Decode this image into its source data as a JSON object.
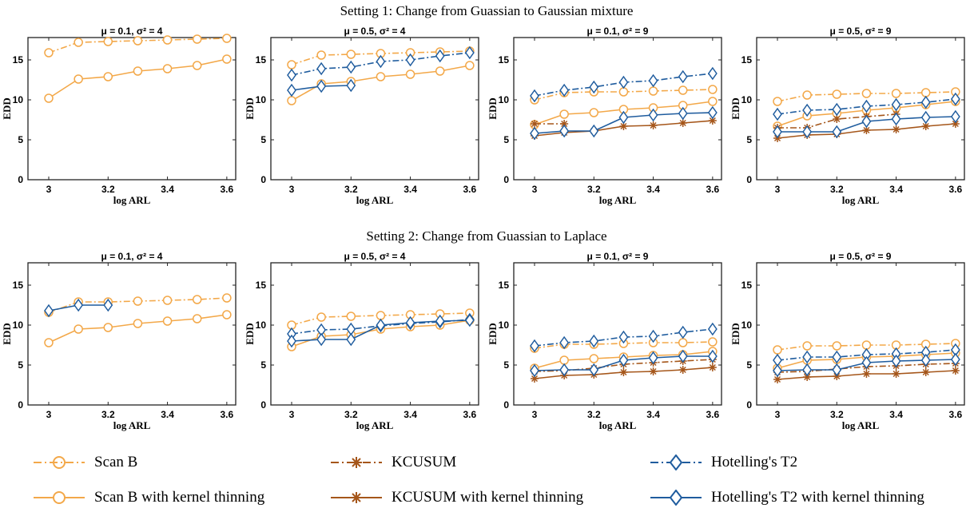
{
  "figure": {
    "settings": [
      {
        "title": "Setting 1: Change from Guassian to Gaussian mixture"
      },
      {
        "title": "Setting 2: Change from Guassian to Laplace"
      }
    ]
  },
  "colors": {
    "scan": "#F3A849",
    "kcusum": "#A5561A",
    "hotelling": "#1F5C9E"
  },
  "legend": [
    {
      "label": "Scan B",
      "method": "scan",
      "style": "dashdot"
    },
    {
      "label": "KCUSUM",
      "method": "kcusum",
      "style": "dashdot"
    },
    {
      "label": "Hotelling's T2",
      "method": "hotelling",
      "style": "dashdot"
    },
    {
      "label": "Scan B with kernel thinning",
      "method": "scan",
      "style": "solid"
    },
    {
      "label": "KCUSUM with kernel thinning",
      "method": "kcusum",
      "style": "solid"
    },
    {
      "label": "Hotelling's T2 with kernel thinning",
      "method": "hotelling",
      "style": "solid"
    }
  ],
  "chart_data": [
    {
      "type": "line",
      "setting": 1,
      "title": "μ = 0.1, σ² = 4",
      "xlabel": "log ARL",
      "ylabel": "EDD",
      "xlim": [
        2.93,
        3.63
      ],
      "ylim": [
        0,
        17.8
      ],
      "xticks": [
        3,
        3.2,
        3.4,
        3.6
      ],
      "yticks": [
        0,
        5,
        10,
        15
      ],
      "x": [
        3,
        3.1,
        3.2,
        3.3,
        3.4,
        3.5,
        3.6
      ],
      "series": [
        {
          "name": "Scan B",
          "method": "scan",
          "style": "dashdot",
          "values": [
            15.9,
            17.2,
            17.3,
            17.4,
            17.5,
            17.6,
            17.7
          ]
        },
        {
          "name": "Scan B with kernel thinning",
          "method": "scan",
          "style": "solid",
          "values": [
            10.2,
            12.6,
            12.9,
            13.6,
            13.9,
            14.3,
            15.1
          ]
        }
      ]
    },
    {
      "type": "line",
      "setting": 1,
      "title": "μ = 0.5, σ² = 4",
      "xlabel": "log ARL",
      "ylabel": "EDD",
      "xlim": [
        2.93,
        3.63
      ],
      "ylim": [
        0,
        17.8
      ],
      "xticks": [
        3,
        3.2,
        3.4,
        3.6
      ],
      "yticks": [
        0,
        5,
        10,
        15
      ],
      "x": [
        3,
        3.1,
        3.2,
        3.3,
        3.4,
        3.5,
        3.6
      ],
      "series": [
        {
          "name": "Scan B",
          "method": "scan",
          "style": "dashdot",
          "values": [
            14.4,
            15.6,
            15.7,
            15.8,
            15.9,
            16.0,
            16.1
          ]
        },
        {
          "name": "Scan B with kernel thinning",
          "method": "scan",
          "style": "solid",
          "values": [
            9.9,
            12.0,
            12.3,
            12.9,
            13.2,
            13.6,
            14.3
          ]
        },
        {
          "name": "Hotelling's T2",
          "method": "hotelling",
          "style": "dashdot",
          "values": [
            13.1,
            13.9,
            14.1,
            14.8,
            15.0,
            15.5,
            15.9
          ]
        },
        {
          "name": "Hotelling's T2 with kernel thinning",
          "method": "hotelling",
          "style": "solid",
          "values": [
            11.2,
            11.7,
            11.8,
            null,
            null,
            null,
            null
          ]
        }
      ]
    },
    {
      "type": "line",
      "setting": 1,
      "title": "μ = 0.1, σ² = 9",
      "xlabel": "log ARL",
      "ylabel": "EDD",
      "xlim": [
        2.93,
        3.63
      ],
      "ylim": [
        0,
        17.8
      ],
      "xticks": [
        3,
        3.2,
        3.4,
        3.6
      ],
      "yticks": [
        0,
        5,
        10,
        15
      ],
      "x": [
        3,
        3.1,
        3.2,
        3.3,
        3.4,
        3.5,
        3.6
      ],
      "series": [
        {
          "name": "Scan B",
          "method": "scan",
          "style": "dashdot",
          "values": [
            10.0,
            10.9,
            11.0,
            11.0,
            11.1,
            11.2,
            11.3
          ]
        },
        {
          "name": "Scan B with kernel thinning",
          "method": "scan",
          "style": "solid",
          "values": [
            6.9,
            8.2,
            8.4,
            8.8,
            9.0,
            9.3,
            9.8
          ]
        },
        {
          "name": "KCUSUM",
          "method": "kcusum",
          "style": "dashdot",
          "values": [
            7.0,
            7.0,
            null,
            null,
            null,
            null,
            null
          ]
        },
        {
          "name": "KCUSUM with kernel thinning",
          "method": "kcusum",
          "style": "solid",
          "values": [
            5.5,
            5.9,
            6.1,
            6.7,
            6.8,
            7.1,
            7.4
          ]
        },
        {
          "name": "Hotelling's T2",
          "method": "hotelling",
          "style": "dashdot",
          "values": [
            10.5,
            11.2,
            11.6,
            12.2,
            12.4,
            12.9,
            13.3
          ]
        },
        {
          "name": "Hotelling's T2 with kernel thinning",
          "method": "hotelling",
          "style": "solid",
          "values": [
            5.8,
            6.1,
            6.1,
            7.8,
            8.1,
            8.3,
            8.4
          ]
        }
      ]
    },
    {
      "type": "line",
      "setting": 1,
      "title": "μ = 0.5, σ² = 9",
      "xlabel": "log ARL",
      "ylabel": "EDD",
      "xlim": [
        2.93,
        3.63
      ],
      "ylim": [
        0,
        17.8
      ],
      "xticks": [
        3,
        3.2,
        3.4,
        3.6
      ],
      "yticks": [
        0,
        5,
        10,
        15
      ],
      "x": [
        3,
        3.1,
        3.2,
        3.3,
        3.4,
        3.5,
        3.6
      ],
      "series": [
        {
          "name": "Scan B",
          "method": "scan",
          "style": "dashdot",
          "values": [
            9.8,
            10.6,
            10.7,
            10.8,
            10.8,
            10.9,
            11.0
          ]
        },
        {
          "name": "Scan B with kernel thinning",
          "method": "scan",
          "style": "solid",
          "values": [
            6.7,
            8.0,
            8.3,
            8.7,
            9.0,
            9.4,
            9.8
          ]
        },
        {
          "name": "KCUSUM",
          "method": "kcusum",
          "style": "dashdot",
          "values": [
            6.5,
            6.5,
            7.6,
            7.9,
            8.2,
            null,
            null
          ]
        },
        {
          "name": "KCUSUM with kernel thinning",
          "method": "kcusum",
          "style": "solid",
          "values": [
            5.2,
            5.6,
            5.7,
            6.2,
            6.3,
            6.7,
            7.0
          ]
        },
        {
          "name": "Hotelling's T2",
          "method": "hotelling",
          "style": "dashdot",
          "values": [
            8.2,
            8.7,
            8.8,
            9.2,
            9.4,
            9.7,
            10.1
          ]
        },
        {
          "name": "Hotelling's T2 with kernel thinning",
          "method": "hotelling",
          "style": "solid",
          "values": [
            6.0,
            6.0,
            6.0,
            7.3,
            7.6,
            7.8,
            7.9
          ]
        }
      ]
    },
    {
      "type": "line",
      "setting": 2,
      "title": "μ = 0.1, σ² = 4",
      "xlabel": "log ARL",
      "ylabel": "EDD",
      "xlim": [
        2.93,
        3.63
      ],
      "ylim": [
        0,
        17.8
      ],
      "xticks": [
        3,
        3.2,
        3.4,
        3.6
      ],
      "yticks": [
        0,
        5,
        10,
        15
      ],
      "x": [
        3,
        3.1,
        3.2,
        3.3,
        3.4,
        3.5,
        3.6
      ],
      "series": [
        {
          "name": "Scan B",
          "method": "scan",
          "style": "dashdot",
          "values": [
            11.6,
            12.9,
            12.9,
            13.0,
            13.1,
            13.2,
            13.4
          ]
        },
        {
          "name": "Scan B with kernel thinning",
          "method": "scan",
          "style": "solid",
          "values": [
            7.8,
            9.5,
            9.7,
            10.2,
            10.5,
            10.8,
            11.3
          ]
        },
        {
          "name": "Hotelling's T2 with kernel thinning",
          "method": "hotelling",
          "style": "solid",
          "values": [
            11.8,
            12.5,
            12.5,
            null,
            null,
            null,
            null
          ]
        }
      ]
    },
    {
      "type": "line",
      "setting": 2,
      "title": "μ = 0.5, σ² = 4",
      "xlabel": "log ARL",
      "ylabel": "EDD",
      "xlim": [
        2.93,
        3.63
      ],
      "ylim": [
        0,
        17.8
      ],
      "xticks": [
        3,
        3.2,
        3.4,
        3.6
      ],
      "yticks": [
        0,
        5,
        10,
        15
      ],
      "x": [
        3,
        3.1,
        3.2,
        3.3,
        3.4,
        3.5,
        3.6
      ],
      "series": [
        {
          "name": "Scan B",
          "method": "scan",
          "style": "dashdot",
          "values": [
            10.0,
            11.0,
            11.1,
            11.2,
            11.3,
            11.4,
            11.5
          ]
        },
        {
          "name": "Scan B with kernel thinning",
          "method": "scan",
          "style": "solid",
          "values": [
            7.3,
            8.6,
            8.8,
            9.5,
            9.8,
            10.0,
            10.6
          ]
        },
        {
          "name": "Hotelling's T2",
          "method": "hotelling",
          "style": "dashdot",
          "values": [
            8.9,
            9.4,
            9.5,
            9.9,
            10.2,
            10.4,
            10.7
          ]
        },
        {
          "name": "Hotelling's T2 with kernel thinning",
          "method": "hotelling",
          "style": "solid",
          "values": [
            8.0,
            8.2,
            8.2,
            10.0,
            10.3,
            10.5,
            10.6
          ]
        }
      ]
    },
    {
      "type": "line",
      "setting": 2,
      "title": "μ = 0.1, σ² = 9",
      "xlabel": "log ARL",
      "ylabel": "EDD",
      "xlim": [
        2.93,
        3.63
      ],
      "ylim": [
        0,
        17.8
      ],
      "xticks": [
        3,
        3.2,
        3.4,
        3.6
      ],
      "yticks": [
        0,
        5,
        10,
        15
      ],
      "x": [
        3,
        3.1,
        3.2,
        3.3,
        3.4,
        3.5,
        3.6
      ],
      "series": [
        {
          "name": "Scan B",
          "method": "scan",
          "style": "dashdot",
          "values": [
            7.1,
            7.6,
            7.6,
            7.7,
            7.8,
            7.8,
            7.9
          ]
        },
        {
          "name": "Scan B with kernel thinning",
          "method": "scan",
          "style": "solid",
          "values": [
            4.6,
            5.6,
            5.8,
            6.0,
            6.2,
            6.3,
            6.7
          ]
        },
        {
          "name": "KCUSUM",
          "method": "kcusum",
          "style": "dashdot",
          "values": [
            4.2,
            4.3,
            4.6,
            5.1,
            5.3,
            5.5,
            5.7
          ]
        },
        {
          "name": "KCUSUM with kernel thinning",
          "method": "kcusum",
          "style": "solid",
          "values": [
            3.3,
            3.7,
            3.8,
            4.1,
            4.2,
            4.4,
            4.7
          ]
        },
        {
          "name": "Hotelling's T2",
          "method": "hotelling",
          "style": "dashdot",
          "values": [
            7.4,
            7.8,
            8.0,
            8.5,
            8.6,
            9.1,
            9.5
          ]
        },
        {
          "name": "Hotelling's T2 with kernel thinning",
          "method": "hotelling",
          "style": "solid",
          "values": [
            4.3,
            4.4,
            4.4,
            5.6,
            5.9,
            6.1,
            6.1
          ]
        }
      ]
    },
    {
      "type": "line",
      "setting": 2,
      "title": "μ = 0.5, σ² = 9",
      "xlabel": "log ARL",
      "ylabel": "EDD",
      "xlim": [
        2.93,
        3.63
      ],
      "ylim": [
        0,
        17.8
      ],
      "xticks": [
        3,
        3.2,
        3.4,
        3.6
      ],
      "yticks": [
        0,
        5,
        10,
        15
      ],
      "x": [
        3,
        3.1,
        3.2,
        3.3,
        3.4,
        3.5,
        3.6
      ],
      "series": [
        {
          "name": "Scan B",
          "method": "scan",
          "style": "dashdot",
          "values": [
            6.9,
            7.4,
            7.4,
            7.5,
            7.5,
            7.6,
            7.7
          ]
        },
        {
          "name": "Scan B with kernel thinning",
          "method": "scan",
          "style": "solid",
          "values": [
            4.6,
            5.6,
            5.7,
            6.0,
            6.1,
            6.3,
            6.5
          ]
        },
        {
          "name": "KCUSUM",
          "method": "kcusum",
          "style": "dashdot",
          "values": [
            4.1,
            4.2,
            4.5,
            4.8,
            4.9,
            5.1,
            5.2
          ]
        },
        {
          "name": "KCUSUM with kernel thinning",
          "method": "kcusum",
          "style": "solid",
          "values": [
            3.2,
            3.5,
            3.6,
            3.9,
            3.9,
            4.1,
            4.3
          ]
        },
        {
          "name": "Hotelling's T2",
          "method": "hotelling",
          "style": "dashdot",
          "values": [
            5.6,
            6.0,
            6.0,
            6.3,
            6.4,
            6.6,
            6.9
          ]
        },
        {
          "name": "Hotelling's T2 with kernel thinning",
          "method": "hotelling",
          "style": "solid",
          "values": [
            4.3,
            4.4,
            4.4,
            5.3,
            5.5,
            5.6,
            5.7
          ]
        }
      ]
    }
  ]
}
